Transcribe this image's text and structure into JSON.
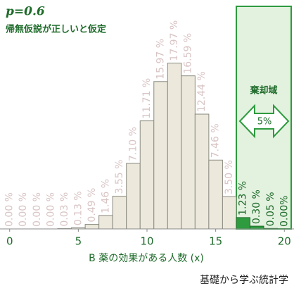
{
  "chart_data": {
    "type": "bar",
    "title": "p=0.6",
    "subtitle": "帰無仮説が正しいと仮定",
    "x": [
      0,
      1,
      2,
      3,
      4,
      5,
      6,
      7,
      8,
      9,
      10,
      11,
      12,
      13,
      14,
      15,
      16,
      17,
      18,
      19,
      20
    ],
    "values": [
      0,
      0,
      0,
      0,
      0.03,
      0.13,
      0.49,
      1.46,
      3.55,
      7.1,
      11.71,
      15.97,
      17.97,
      16.59,
      12.44,
      7.46,
      3.5,
      1.23,
      0.3,
      0.05,
      0
    ],
    "value_labels": [
      "0.00 %",
      "0.00 %",
      "0.00 %",
      "0.00 %",
      "0.03 %",
      "0.13 %",
      "0.49 %",
      "1.46 %",
      "3.55 %",
      "7.10 %",
      "11.71 %",
      "15.97 %",
      "17.97 %",
      "16.59 %",
      "12.44 %",
      "7.46 %",
      "3.50 %",
      "1.23 %",
      "0.30 %",
      "0.05 %",
      "0.00%"
    ],
    "colors": [
      "#ece9dc",
      "#ece9dc",
      "#ece9dc",
      "#ece9dc",
      "#ece9dc",
      "#ece9dc",
      "#ece9dc",
      "#ece9dc",
      "#ece9dc",
      "#ece9dc",
      "#ece9dc",
      "#ece9dc",
      "#ece9dc",
      "#ece9dc",
      "#ece9dc",
      "#ece9dc",
      "#ece9dc",
      "#2e9b3f",
      "#2e9b3f",
      "#2e9b3f",
      "#2e9b3f"
    ],
    "label_colors": [
      "#d9c4c4",
      "#d9c4c4",
      "#d9c4c4",
      "#d9c4c4",
      "#d9c4c4",
      "#d9c4c4",
      "#d9c4c4",
      "#d9c4c4",
      "#d9c4c4",
      "#d9c4c4",
      "#d9c4c4",
      "#d9c4c4",
      "#d9c4c4",
      "#d9c4c4",
      "#d9c4c4",
      "#d9c4c4",
      "#d9c4c4",
      "#1e6b2a",
      "#1e6b2a",
      "#1e6b2a",
      "#1e6b2a"
    ],
    "xlim": [
      -0.6,
      20.6
    ],
    "xticks": [
      0,
      5,
      10,
      15,
      20
    ],
    "xlabel": "B 薬の効果がある人数 (x)",
    "region_label": "棄却域",
    "region_value": "5%",
    "footer": "基礎から学ぶ統計学"
  }
}
